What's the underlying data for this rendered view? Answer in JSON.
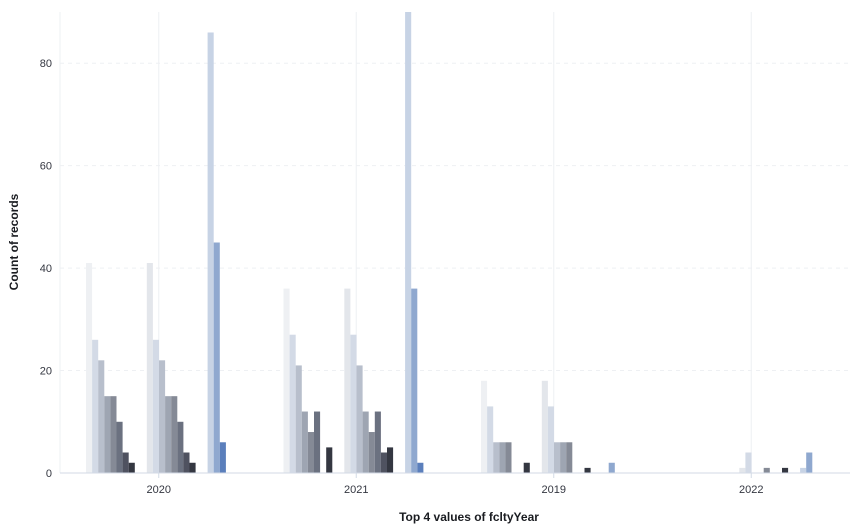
{
  "chart_data": {
    "type": "bar",
    "xlabel": "Top 4 values of fcltyYear",
    "ylabel": "Count of records",
    "ylim": [
      0,
      90
    ],
    "yticks": [
      0,
      20,
      40,
      60,
      80
    ],
    "grid": "horizontal-dashed",
    "categories": [
      "2020",
      "2021",
      "2019",
      "2022"
    ],
    "groups": [
      {
        "palette": [
          "#eef0f3",
          "#d3dae6",
          "#b8bfcc",
          "#9ea5b2",
          "#858a96",
          "#6b7180",
          "#4f5260",
          "#343741"
        ],
        "series": [
          {
            "values": [
              41,
              36,
              18,
              0
            ]
          },
          {
            "values": [
              26,
              27,
              13,
              0
            ]
          },
          {
            "values": [
              22,
              21,
              6,
              0
            ]
          },
          {
            "values": [
              15,
              12,
              6,
              0
            ]
          },
          {
            "values": [
              15,
              8,
              6,
              0
            ]
          },
          {
            "values": [
              10,
              12,
              0,
              0
            ]
          },
          {
            "values": [
              4,
              0,
              0,
              0
            ]
          },
          {
            "values": [
              2,
              5,
              2,
              0
            ]
          }
        ]
      },
      {
        "palette": [
          "#e3e6eb",
          "#d3dae6",
          "#b8bfcc",
          "#9ea5b2",
          "#858a96",
          "#6b7180",
          "#4f5260",
          "#343741"
        ],
        "series": [
          {
            "values": [
              41,
              36,
              18,
              1
            ]
          },
          {
            "values": [
              26,
              27,
              13,
              4
            ]
          },
          {
            "values": [
              22,
              21,
              6,
              0
            ]
          },
          {
            "values": [
              15,
              12,
              6,
              0
            ]
          },
          {
            "values": [
              15,
              8,
              6,
              1
            ]
          },
          {
            "values": [
              10,
              12,
              0,
              0
            ]
          },
          {
            "values": [
              4,
              4,
              0,
              0
            ]
          },
          {
            "values": [
              2,
              5,
              1,
              1
            ]
          }
        ]
      },
      {
        "palette": [
          "#c7d3e5",
          "#8fa8cf",
          "#5b7fbc"
        ],
        "series": [
          {
            "values": [
              86,
              90,
              0,
              1
            ]
          },
          {
            "values": [
              45,
              36,
              2,
              4
            ]
          },
          {
            "values": [
              6,
              2,
              0,
              0
            ]
          }
        ]
      }
    ]
  }
}
